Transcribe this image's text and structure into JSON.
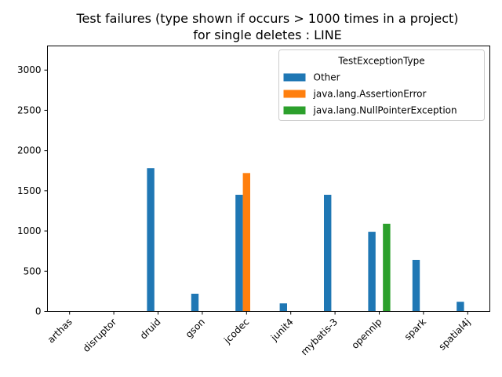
{
  "chart_data": {
    "type": "bar",
    "title": "Test failures (type shown if occurs > 1000 times in a project)",
    "subtitle": "for single deletes : LINE",
    "xlabel": "",
    "ylabel": "",
    "ylim": [
      0,
      3300
    ],
    "yticks": [
      0,
      500,
      1000,
      1500,
      2000,
      2500,
      3000
    ],
    "ytick_labels": [
      "0",
      "500",
      "1000",
      "1500",
      "2000",
      "2500",
      "3000"
    ],
    "categories": [
      "arthas",
      "disruptor",
      "druid",
      "gson",
      "jcodec",
      "junit4",
      "mybatis-3",
      "opennlp",
      "spark",
      "spatial4j"
    ],
    "legend_title": "TestExceptionType",
    "legend_position": "top-right",
    "grid": false,
    "series": [
      {
        "name": "Other",
        "color": "#1f77b4",
        "values": [
          0,
          0,
          1780,
          220,
          1450,
          100,
          1450,
          990,
          640,
          120
        ]
      },
      {
        "name": "java.lang.AssertionError",
        "color": "#ff7f0e",
        "values": [
          0,
          0,
          0,
          0,
          1720,
          0,
          0,
          0,
          0,
          0
        ]
      },
      {
        "name": "java.lang.NullPointerException",
        "color": "#2ca02c",
        "values": [
          0,
          0,
          0,
          0,
          0,
          0,
          0,
          1090,
          0,
          0
        ]
      }
    ]
  }
}
